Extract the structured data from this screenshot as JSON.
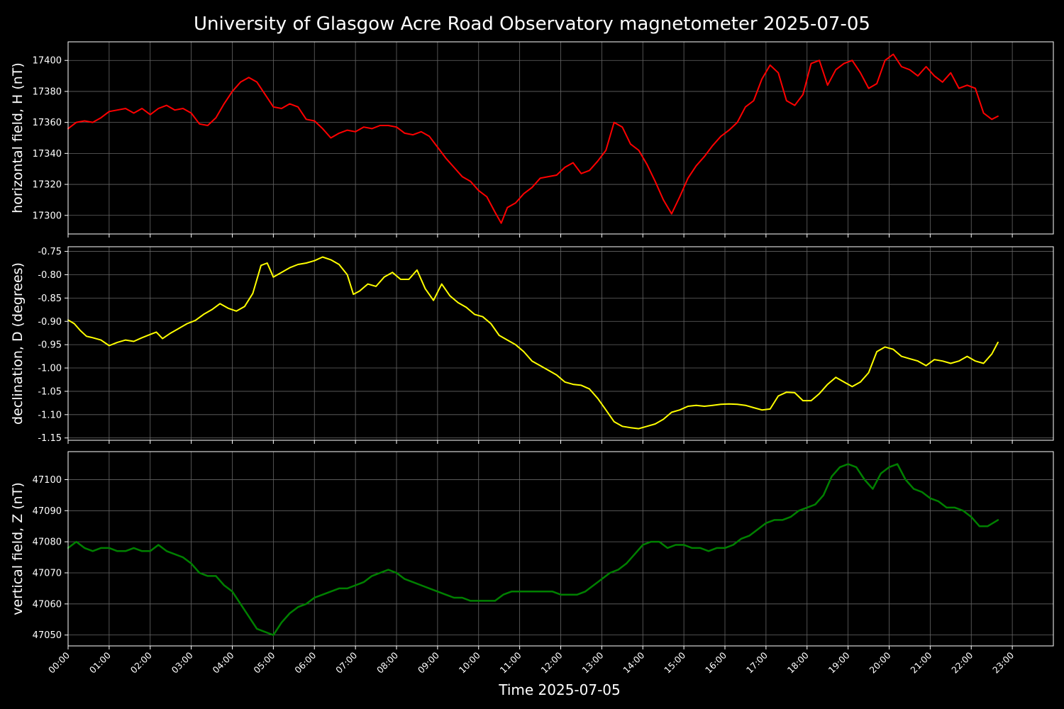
{
  "chart_data": [
    {
      "type": "line",
      "title": "University of Glasgow Acre Road Observatory magnetometer 2025-07-05",
      "ylabel": "horizontal field, H (nT)",
      "ylim": [
        17288,
        17412
      ],
      "yticks": [
        17300,
        17320,
        17340,
        17360,
        17380,
        17400
      ],
      "color": "#ff0000",
      "line_width": 2,
      "grid": true,
      "x_unit": "hours since 00:00",
      "series": [
        {
          "x": [
            0,
            0.2,
            0.4,
            0.6,
            0.8,
            1.0,
            1.2,
            1.4,
            1.6,
            1.8,
            2.0,
            2.2,
            2.4,
            2.6,
            2.8,
            3.0,
            3.2,
            3.4,
            3.6,
            3.8,
            4.0,
            4.2,
            4.4,
            4.6,
            4.8,
            5.0,
            5.2,
            5.4,
            5.6,
            5.8,
            6.0,
            6.2,
            6.4,
            6.6,
            6.8,
            7.0,
            7.2,
            7.4,
            7.6,
            7.8,
            8.0,
            8.2,
            8.4,
            8.6,
            8.8,
            9.0,
            9.2,
            9.4,
            9.6,
            9.8,
            10.0,
            10.2,
            10.4,
            10.55,
            10.7,
            10.9,
            11.1,
            11.3,
            11.5,
            11.7,
            11.9,
            12.1,
            12.3,
            12.5,
            12.7,
            12.9,
            13.1,
            13.3,
            13.5,
            13.7,
            13.9,
            14.1,
            14.3,
            14.5,
            14.7,
            14.9,
            15.1,
            15.3,
            15.5,
            15.7,
            15.9,
            16.1,
            16.3,
            16.5,
            16.7,
            16.9,
            17.1,
            17.3,
            17.5,
            17.7,
            17.9,
            18.1,
            18.3,
            18.5,
            18.7,
            18.9,
            19.1,
            19.3,
            19.5,
            19.7,
            19.9,
            20.1,
            20.3,
            20.5,
            20.7,
            20.9,
            21.1,
            21.3,
            21.5,
            21.7,
            21.9,
            22.1,
            22.3,
            22.5,
            22.65
          ],
          "y": [
            17356,
            17360,
            17361,
            17360,
            17363,
            17367,
            17368,
            17369,
            17366,
            17369,
            17365,
            17369,
            17371,
            17368,
            17369,
            17366,
            17359,
            17358,
            17363,
            17372,
            17380,
            17386,
            17389,
            17386,
            17378,
            17370,
            17369,
            17372,
            17370,
            17362,
            17361,
            17356,
            17350,
            17353,
            17355,
            17354,
            17357,
            17356,
            17358,
            17358,
            17357,
            17353,
            17352,
            17354,
            17351,
            17344,
            17337,
            17331,
            17325,
            17322,
            17316,
            17312,
            17302,
            17295,
            17305,
            17308,
            17314,
            17318,
            17324,
            17325,
            17326,
            17331,
            17334,
            17327,
            17329,
            17335,
            17342,
            17360,
            17357,
            17346,
            17342,
            17333,
            17322,
            17310,
            17301,
            17312,
            17324,
            17332,
            17338,
            17345,
            17351,
            17355,
            17360,
            17370,
            17374,
            17388,
            17397,
            17392,
            17374,
            17371,
            17378,
            17398,
            17400,
            17384,
            17394,
            17398,
            17400,
            17392,
            17382,
            17385,
            17400,
            17404,
            17396,
            17394,
            17390,
            17396,
            17390,
            17386,
            17392,
            17382,
            17384,
            17382,
            17366,
            17362,
            17364
          ]
        }
      ]
    },
    {
      "type": "line",
      "ylabel": "declination, D (degrees)",
      "ylim": [
        -1.155,
        -0.74
      ],
      "yticks": [
        -0.75,
        -0.8,
        -0.85,
        -0.9,
        -0.95,
        -1.0,
        -1.05,
        -1.1,
        -1.15
      ],
      "tick_format": 2,
      "color": "#ffff00",
      "line_width": 2,
      "grid": true,
      "x_unit": "hours since 00:00",
      "series": [
        {
          "x": [
            0,
            0.15,
            0.3,
            0.45,
            0.6,
            0.8,
            1.0,
            1.2,
            1.4,
            1.6,
            1.8,
            2.0,
            2.15,
            2.3,
            2.5,
            2.7,
            2.9,
            3.1,
            3.3,
            3.5,
            3.7,
            3.9,
            4.1,
            4.3,
            4.5,
            4.7,
            4.85,
            5.0,
            5.2,
            5.4,
            5.6,
            5.8,
            6.0,
            6.2,
            6.4,
            6.6,
            6.8,
            6.95,
            7.1,
            7.3,
            7.5,
            7.7,
            7.9,
            8.1,
            8.3,
            8.5,
            8.7,
            8.9,
            9.1,
            9.3,
            9.5,
            9.7,
            9.9,
            10.1,
            10.3,
            10.5,
            10.7,
            10.9,
            11.1,
            11.3,
            11.5,
            11.7,
            11.9,
            12.1,
            12.3,
            12.5,
            12.7,
            12.9,
            13.1,
            13.3,
            13.5,
            13.7,
            13.9,
            14.1,
            14.3,
            14.5,
            14.7,
            14.9,
            15.1,
            15.3,
            15.5,
            15.7,
            15.9,
            16.1,
            16.3,
            16.5,
            16.7,
            16.9,
            17.1,
            17.3,
            17.5,
            17.7,
            17.9,
            18.1,
            18.3,
            18.5,
            18.7,
            18.9,
            19.1,
            19.3,
            19.5,
            19.7,
            19.9,
            20.1,
            20.3,
            20.5,
            20.7,
            20.9,
            21.1,
            21.3,
            21.5,
            21.7,
            21.9,
            22.1,
            22.3,
            22.5,
            22.65
          ],
          "y": [
            -0.897,
            -0.905,
            -0.92,
            -0.932,
            -0.935,
            -0.94,
            -0.952,
            -0.945,
            -0.94,
            -0.943,
            -0.935,
            -0.928,
            -0.923,
            -0.937,
            -0.925,
            -0.915,
            -0.905,
            -0.898,
            -0.885,
            -0.875,
            -0.862,
            -0.872,
            -0.878,
            -0.868,
            -0.84,
            -0.78,
            -0.775,
            -0.805,
            -0.795,
            -0.785,
            -0.778,
            -0.775,
            -0.77,
            -0.762,
            -0.768,
            -0.778,
            -0.8,
            -0.842,
            -0.835,
            -0.82,
            -0.825,
            -0.805,
            -0.795,
            -0.81,
            -0.81,
            -0.79,
            -0.83,
            -0.855,
            -0.82,
            -0.845,
            -0.86,
            -0.87,
            -0.885,
            -0.89,
            -0.905,
            -0.93,
            -0.94,
            -0.95,
            -0.965,
            -0.985,
            -0.995,
            -1.005,
            -1.015,
            -1.03,
            -1.035,
            -1.037,
            -1.045,
            -1.065,
            -1.09,
            -1.115,
            -1.125,
            -1.128,
            -1.13,
            -1.125,
            -1.12,
            -1.11,
            -1.095,
            -1.09,
            -1.082,
            -1.08,
            -1.082,
            -1.08,
            -1.078,
            -1.077,
            -1.078,
            -1.08,
            -1.085,
            -1.09,
            -1.088,
            -1.06,
            -1.052,
            -1.053,
            -1.07,
            -1.07,
            -1.055,
            -1.035,
            -1.02,
            -1.03,
            -1.04,
            -1.03,
            -1.01,
            -0.965,
            -0.955,
            -0.96,
            -0.975,
            -0.98,
            -0.985,
            -0.995,
            -0.982,
            -0.985,
            -0.99,
            -0.985,
            -0.975,
            -0.985,
            -0.99,
            -0.97,
            -0.945
          ]
        }
      ]
    },
    {
      "type": "line",
      "ylabel": "vertical field, Z (nT)",
      "xlabel": "Time 2025-07-05",
      "ylim": [
        47046.5,
        47109
      ],
      "yticks": [
        47050,
        47060,
        47070,
        47080,
        47090,
        47100
      ],
      "color": "#008000",
      "line_width": 2.5,
      "grid": true,
      "x_unit": "hours since 00:00",
      "xlim": [
        0,
        24
      ],
      "xticks": [
        "00:00",
        "01:00",
        "02:00",
        "03:00",
        "04:00",
        "05:00",
        "06:00",
        "07:00",
        "08:00",
        "09:00",
        "10:00",
        "11:00",
        "12:00",
        "13:00",
        "14:00",
        "15:00",
        "16:00",
        "17:00",
        "18:00",
        "19:00",
        "20:00",
        "21:00",
        "22:00",
        "23:00"
      ],
      "series": [
        {
          "x": [
            0,
            0.2,
            0.4,
            0.6,
            0.8,
            1.0,
            1.2,
            1.4,
            1.6,
            1.8,
            2.0,
            2.2,
            2.4,
            2.6,
            2.8,
            3.0,
            3.2,
            3.4,
            3.6,
            3.8,
            4.0,
            4.2,
            4.4,
            4.6,
            4.8,
            5.0,
            5.2,
            5.4,
            5.6,
            5.8,
            6.0,
            6.2,
            6.4,
            6.6,
            6.8,
            7.0,
            7.2,
            7.4,
            7.6,
            7.8,
            8.0,
            8.2,
            8.4,
            8.6,
            8.8,
            9.0,
            9.2,
            9.4,
            9.6,
            9.8,
            10.0,
            10.2,
            10.4,
            10.6,
            10.8,
            11.0,
            11.2,
            11.4,
            11.6,
            11.8,
            12.0,
            12.2,
            12.4,
            12.6,
            12.8,
            13.0,
            13.2,
            13.4,
            13.6,
            13.8,
            14.0,
            14.2,
            14.4,
            14.6,
            14.8,
            15.0,
            15.2,
            15.4,
            15.6,
            15.8,
            16.0,
            16.2,
            16.4,
            16.6,
            16.8,
            17.0,
            17.2,
            17.4,
            17.6,
            17.8,
            18.0,
            18.2,
            18.4,
            18.6,
            18.8,
            19.0,
            19.2,
            19.4,
            19.6,
            19.8,
            20.0,
            20.2,
            20.4,
            20.6,
            20.8,
            21.0,
            21.2,
            21.4,
            21.6,
            21.8,
            22.0,
            22.2,
            22.4,
            22.65
          ],
          "y": [
            47078,
            47080,
            47078,
            47077,
            47078,
            47078,
            47077,
            47077,
            47078,
            47077,
            47077,
            47079,
            47077,
            47076,
            47075,
            47073,
            47070,
            47069,
            47069,
            47066,
            47064,
            47060,
            47056,
            47052,
            47051,
            47050,
            47054,
            47057,
            47059,
            47060,
            47062,
            47063,
            47064,
            47065,
            47065,
            47066,
            47067,
            47069,
            47070,
            47071,
            47070,
            47068,
            47067,
            47066,
            47065,
            47064,
            47063,
            47062,
            47062,
            47061,
            47061,
            47061,
            47061,
            47063,
            47064,
            47064,
            47064,
            47064,
            47064,
            47064,
            47063,
            47063,
            47063,
            47064,
            47066,
            47068,
            47070,
            47071,
            47073,
            47076,
            47079,
            47080,
            47080,
            47078,
            47079,
            47079,
            47078,
            47078,
            47077,
            47078,
            47078,
            47079,
            47081,
            47082,
            47084,
            47086,
            47087,
            47087,
            47088,
            47090,
            47091,
            47092,
            47095,
            47101,
            47104,
            47105,
            47104,
            47100,
            47097,
            47102,
            47104,
            47105,
            47100,
            47097,
            47096,
            47094,
            47093,
            47091,
            47091,
            47090,
            47088,
            47085,
            47085,
            47087
          ]
        }
      ]
    }
  ]
}
